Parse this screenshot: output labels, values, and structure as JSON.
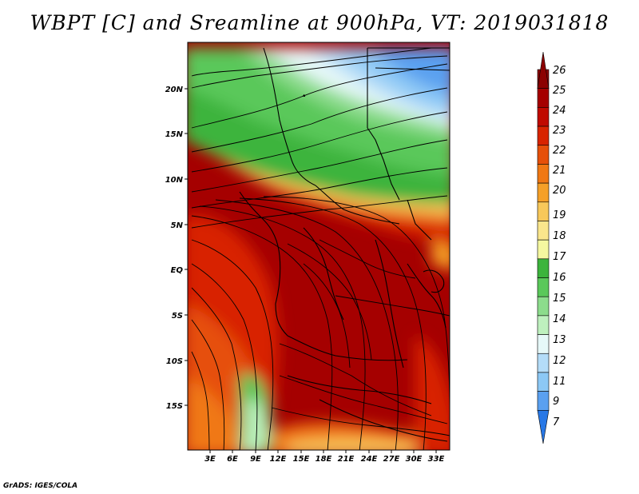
{
  "title": "WBPT [C] and Sreamline at 900hPa, VT: 2019031818",
  "footer": "GrADS: IGES/COLA",
  "map": {
    "y_axis_labels": [
      "20N",
      "15N",
      "10N",
      "5N",
      "EQ",
      "5S",
      "10S",
      "15S"
    ],
    "x_axis_labels": [
      "3E",
      "6E",
      "9E",
      "12E",
      "15E",
      "18E",
      "21E",
      "24E",
      "27E",
      "30E",
      "33E"
    ]
  },
  "colorbar": {
    "labels": [
      "26",
      "25",
      "24",
      "23",
      "22",
      "21",
      "20",
      "19",
      "18",
      "17",
      "16",
      "15",
      "14",
      "13",
      "12",
      "11",
      "9",
      "7"
    ],
    "colors": [
      "#8c0000",
      "#a50000",
      "#c00a00",
      "#d82400",
      "#e6500a",
      "#f07814",
      "#f5a028",
      "#f8c85a",
      "#fae68c",
      "#f5f8a0",
      "#3cb43c",
      "#5ac85a",
      "#8cdc8c",
      "#bef0be",
      "#e6f8f8",
      "#b4dcf8",
      "#8cc8f5",
      "#5aa0f0",
      "#2878e6"
    ]
  }
}
